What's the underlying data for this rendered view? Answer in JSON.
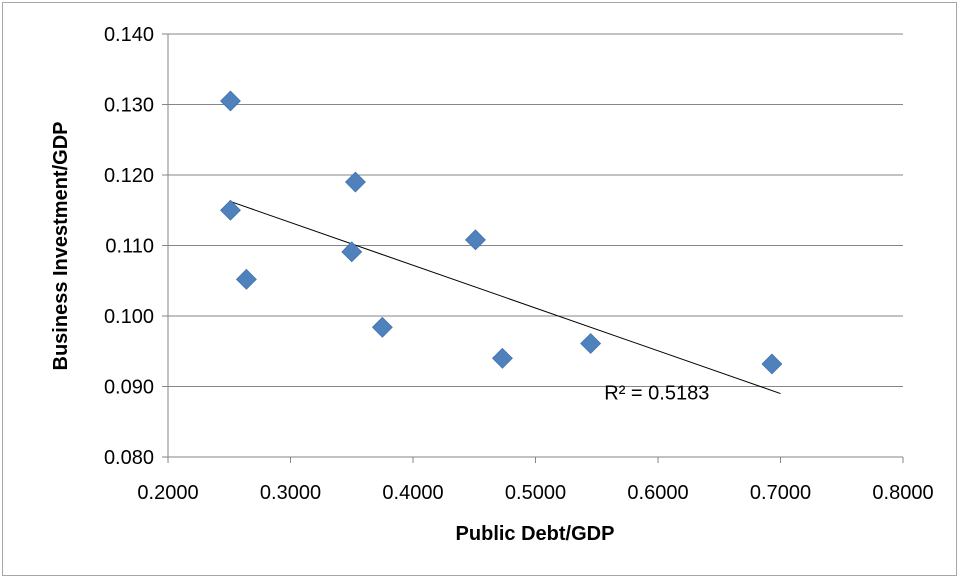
{
  "chart_data": {
    "type": "scatter",
    "title": "",
    "xlabel": "Public Debt/GDP",
    "ylabel": "Business Investment/GDP",
    "xlim": [
      0.2,
      0.8
    ],
    "ylim": [
      0.08,
      0.14
    ],
    "x_ticks": [
      "0.2000",
      "0.3000",
      "0.4000",
      "0.5000",
      "0.6000",
      "0.7000",
      "0.8000"
    ],
    "y_ticks": [
      "0.080",
      "0.090",
      "0.100",
      "0.110",
      "0.120",
      "0.130",
      "0.140"
    ],
    "x_tick_values": [
      0.2,
      0.3,
      0.4,
      0.5,
      0.6,
      0.7,
      0.8
    ],
    "y_tick_values": [
      0.08,
      0.09,
      0.1,
      0.11,
      0.12,
      0.13,
      0.14
    ],
    "grid": "horizontal",
    "legend": "none",
    "series": [
      {
        "points": [
          {
            "x": 0.251,
            "y": 0.1305
          },
          {
            "x": 0.251,
            "y": 0.115
          },
          {
            "x": 0.264,
            "y": 0.1052
          },
          {
            "x": 0.35,
            "y": 0.1091
          },
          {
            "x": 0.353,
            "y": 0.119
          },
          {
            "x": 0.375,
            "y": 0.0984
          },
          {
            "x": 0.451,
            "y": 0.1108
          },
          {
            "x": 0.473,
            "y": 0.094
          },
          {
            "x": 0.545,
            "y": 0.0961
          },
          {
            "x": 0.693,
            "y": 0.0932
          }
        ],
        "color": "#4f81bd",
        "marker": "diamond"
      }
    ],
    "trendline": {
      "type": "linear",
      "start": {
        "x": 0.25,
        "y": 0.1163
      },
      "end": {
        "x": 0.7,
        "y": 0.089
      },
      "color": "#000000",
      "label": "R² = 0.5183",
      "label_anchor": {
        "x": 0.57,
        "y": 0.088
      }
    }
  }
}
